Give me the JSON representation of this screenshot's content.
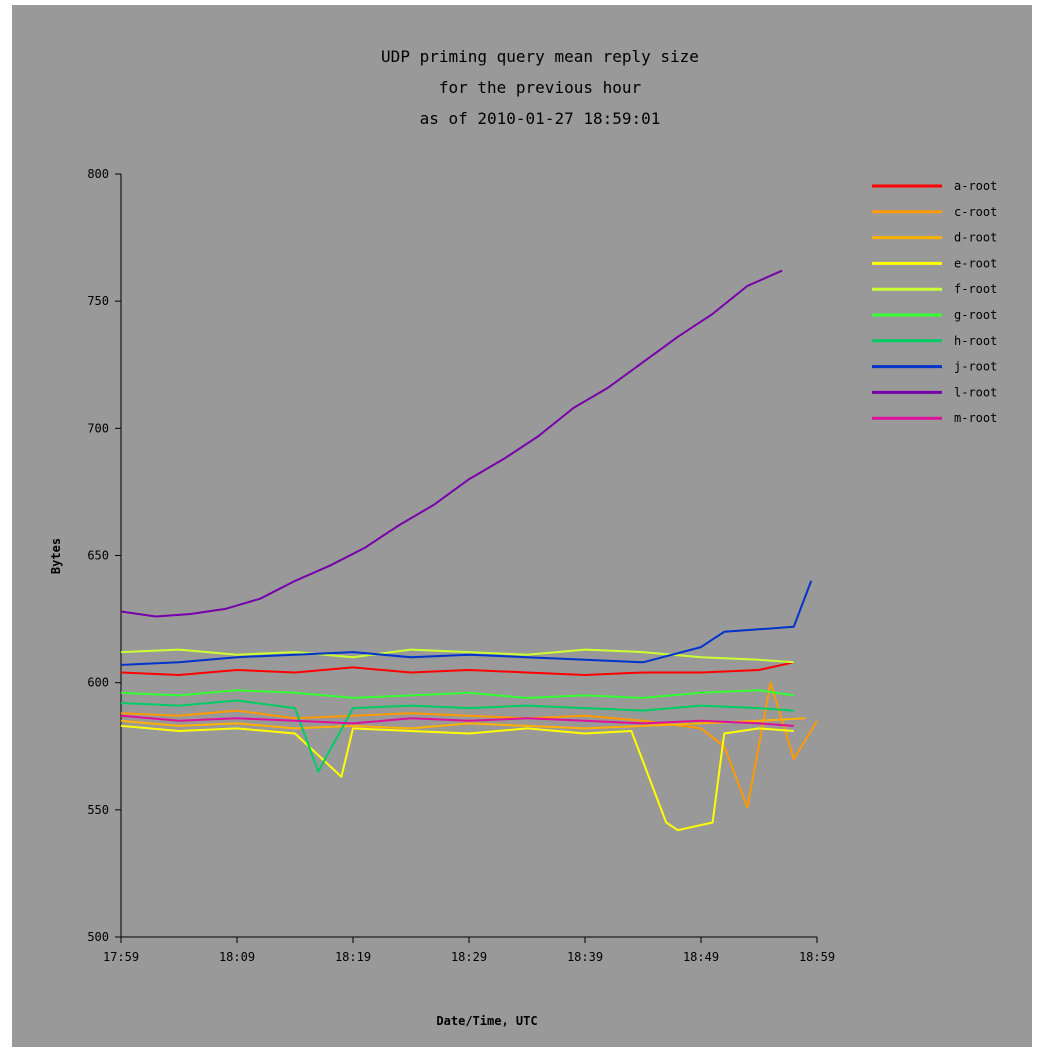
{
  "chart_data": {
    "type": "line",
    "title": [
      "UDP priming query mean reply size",
      "for the previous hour",
      "as of 2010-01-27 18:59:01"
    ],
    "xlabel": "Date/Time, UTC",
    "ylabel": "Bytes",
    "ylim": [
      500,
      800
    ],
    "yticks": [
      "500",
      "550",
      "600",
      "650",
      "700",
      "750",
      "800"
    ],
    "x_ticks": [
      "17:59",
      "18:09",
      "18:19",
      "18:29",
      "18:39",
      "18:49",
      "18:59"
    ],
    "x_range_minutes": [
      0,
      60
    ],
    "grid": false,
    "legend_position": "top-right",
    "series": [
      {
        "name": "a-root",
        "color": "#ff0000",
        "x": [
          0,
          5,
          10,
          15,
          20,
          25,
          30,
          35,
          40,
          45,
          50,
          55,
          58
        ],
        "values": [
          604,
          603,
          605,
          604,
          606,
          604,
          605,
          604,
          603,
          604,
          604,
          605,
          608
        ]
      },
      {
        "name": "c-root",
        "color": "#ff9900",
        "x": [
          0,
          5,
          10,
          15,
          20,
          25,
          30,
          35,
          40,
          45,
          50,
          52,
          54,
          56,
          58,
          60
        ],
        "values": [
          588,
          587,
          589,
          586,
          587,
          588,
          587,
          586,
          587,
          585,
          582,
          575,
          551,
          600,
          570,
          585
        ]
      },
      {
        "name": "d-root",
        "color": "#ffb000",
        "x": [
          0,
          5,
          10,
          15,
          20,
          25,
          30,
          35,
          40,
          45,
          50,
          55,
          59
        ],
        "values": [
          585,
          583,
          584,
          582,
          583,
          582,
          584,
          583,
          582,
          583,
          584,
          585,
          586
        ]
      },
      {
        "name": "e-root",
        "color": "#ffff00",
        "x": [
          0,
          5,
          10,
          15,
          19,
          20,
          25,
          30,
          35,
          40,
          44,
          47,
          48,
          51,
          52,
          55,
          58
        ],
        "values": [
          583,
          581,
          582,
          580,
          563,
          582,
          581,
          580,
          582,
          580,
          581,
          545,
          542,
          545,
          580,
          582,
          581
        ]
      },
      {
        "name": "f-root",
        "color": "#ccff33",
        "x": [
          0,
          5,
          10,
          15,
          20,
          25,
          30,
          35,
          40,
          45,
          50,
          55,
          58
        ],
        "values": [
          612,
          613,
          611,
          612,
          610,
          613,
          612,
          611,
          613,
          612,
          610,
          609,
          608
        ]
      },
      {
        "name": "g-root",
        "color": "#33ff33",
        "x": [
          0,
          5,
          10,
          15,
          20,
          25,
          30,
          35,
          40,
          45,
          50,
          55,
          58
        ],
        "values": [
          596,
          595,
          597,
          596,
          594,
          595,
          596,
          594,
          595,
          594,
          596,
          597,
          595
        ]
      },
      {
        "name": "h-root",
        "color": "#00cc66",
        "x": [
          0,
          5,
          10,
          15,
          17,
          20,
          25,
          30,
          35,
          40,
          45,
          50,
          55,
          58
        ],
        "values": [
          592,
          591,
          593,
          590,
          565,
          590,
          591,
          590,
          591,
          590,
          589,
          591,
          590,
          589
        ]
      },
      {
        "name": "j-root",
        "color": "#0033cc",
        "x": [
          0,
          5,
          10,
          15,
          20,
          25,
          30,
          35,
          40,
          45,
          50,
          52,
          55,
          58,
          59.5
        ],
        "values": [
          607,
          608,
          610,
          611,
          612,
          610,
          611,
          610,
          609,
          608,
          614,
          620,
          621,
          622,
          640
        ]
      },
      {
        "name": "l-root",
        "color": "#7700aa",
        "x": [
          0,
          3,
          6,
          9,
          12,
          15,
          18,
          21,
          24,
          27,
          30,
          33,
          36,
          39,
          42,
          45,
          48,
          51,
          54,
          57
        ],
        "values": [
          628,
          626,
          627,
          629,
          633,
          640,
          646,
          653,
          662,
          670,
          680,
          688,
          697,
          708,
          716,
          726,
          736,
          745,
          756,
          762
        ]
      },
      {
        "name": "m-root",
        "color": "#dd1199",
        "x": [
          0,
          5,
          10,
          15,
          20,
          25,
          30,
          35,
          40,
          45,
          50,
          55,
          58
        ],
        "values": [
          587,
          585,
          586,
          585,
          584,
          586,
          585,
          586,
          585,
          584,
          585,
          584,
          583
        ]
      }
    ]
  }
}
